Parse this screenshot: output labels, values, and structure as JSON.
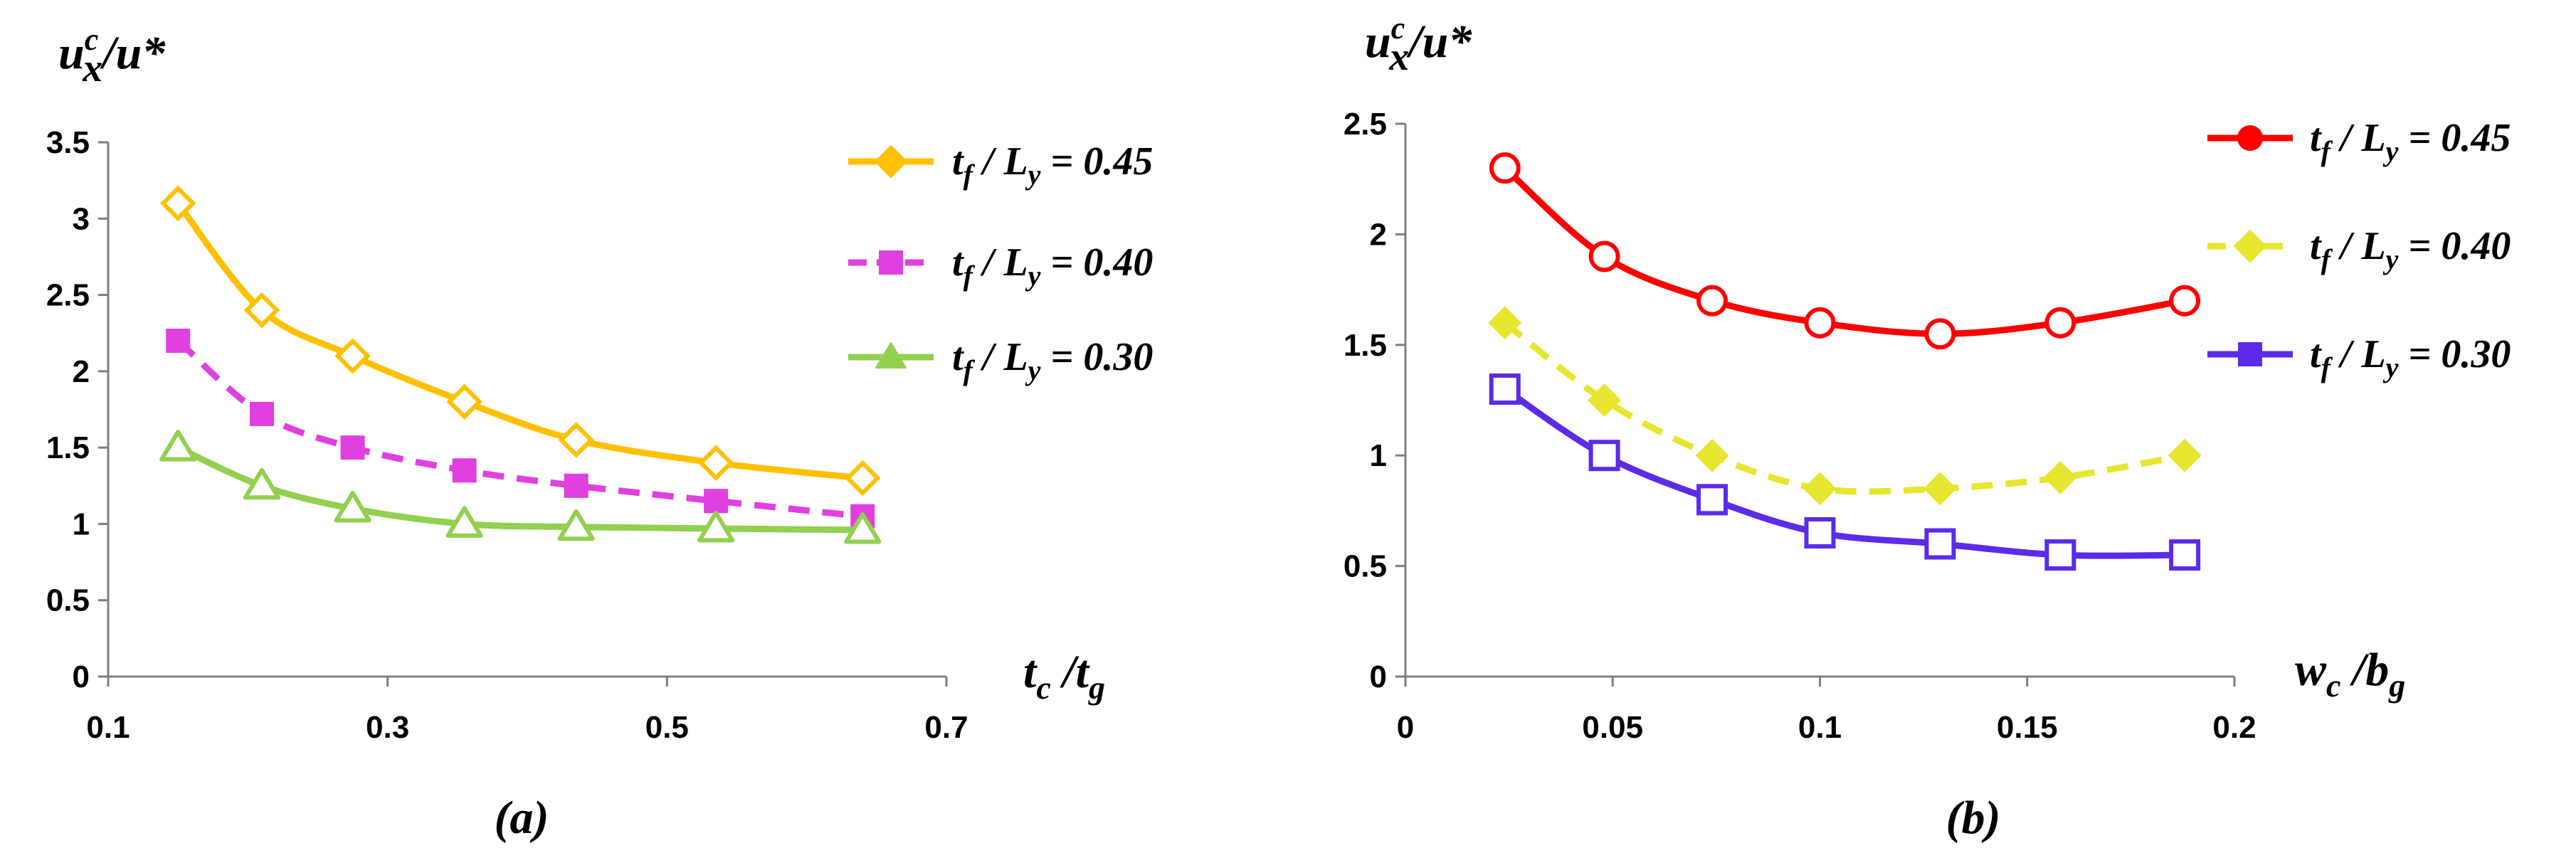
{
  "chart_data": [
    {
      "type": "line",
      "panel_label": "(a)",
      "ylabel": {
        "main": "u",
        "sup": "c",
        "sub": "x",
        "rest": "/u*"
      },
      "xlabel": {
        "t1": "t",
        "s1": "c",
        "mid": " /t",
        "s2": "g"
      },
      "xlim": [
        0.1,
        0.7
      ],
      "ylim": [
        0,
        3.5
      ],
      "xticks": [
        "0.1",
        "0.3",
        "0.5",
        "0.7"
      ],
      "yticks": [
        "0",
        "0.5",
        "1",
        "1.5",
        "2",
        "2.5",
        "3",
        "3.5"
      ],
      "series": [
        {
          "name": "0.45",
          "legend": {
            "t": "t",
            "ts": "f",
            "mid": " / L",
            "ls": "y",
            "val": " = 0.45"
          },
          "color": "#FFC000",
          "dash": false,
          "marker": "diamond-open",
          "legend_marker": "diamond-filled",
          "x": [
            0.15,
            0.21,
            0.275,
            0.355,
            0.435,
            0.535,
            0.64
          ],
          "y": [
            3.1,
            2.4,
            2.1,
            1.8,
            1.55,
            1.4,
            1.3
          ]
        },
        {
          "name": "0.40",
          "legend": {
            "t": "t",
            "ts": "f",
            "mid": " / L",
            "ls": "y",
            "val": " = 0.40"
          },
          "color": "#E040E0",
          "dash": true,
          "marker": "square-filled",
          "legend_marker": "square-filled",
          "x": [
            0.15,
            0.21,
            0.275,
            0.355,
            0.435,
            0.535,
            0.64
          ],
          "y": [
            2.2,
            1.72,
            1.5,
            1.35,
            1.25,
            1.15,
            1.05
          ]
        },
        {
          "name": "0.30",
          "legend": {
            "t": "t",
            "ts": "f",
            "mid": " / L",
            "ls": "y",
            "val": " = 0.30"
          },
          "color": "#92D050",
          "dash": false,
          "marker": "triangle-open",
          "legend_marker": "triangle-filled",
          "x": [
            0.15,
            0.21,
            0.275,
            0.355,
            0.435,
            0.535,
            0.64
          ],
          "y": [
            1.5,
            1.25,
            1.1,
            1.0,
            0.98,
            0.97,
            0.96
          ]
        }
      ]
    },
    {
      "type": "line",
      "panel_label": "(b)",
      "ylabel": {
        "main": "u",
        "sup": "c",
        "sub": "x",
        "rest": "/u*"
      },
      "xlabel": {
        "t1": "w",
        "s1": "c",
        "mid": " /b",
        "s2": "g"
      },
      "xlim": [
        0,
        0.2
      ],
      "ylim": [
        0,
        2.5
      ],
      "xticks": [
        "0",
        "0.05",
        "0.1",
        "0.15",
        "0.2"
      ],
      "yticks": [
        "0",
        "0.5",
        "1",
        "1.5",
        "2",
        "2.5"
      ],
      "series": [
        {
          "name": "0.45",
          "legend": {
            "t": "t",
            "ts": "f",
            "mid": " / L",
            "ls": "y",
            "val": " = 0.45"
          },
          "color": "#FF0000",
          "dash": false,
          "marker": "circle-open",
          "legend_marker": "circle-filled",
          "x": [
            0.024,
            0.048,
            0.074,
            0.1,
            0.129,
            0.158,
            0.188
          ],
          "y": [
            2.3,
            1.9,
            1.7,
            1.6,
            1.55,
            1.6,
            1.7
          ]
        },
        {
          "name": "0.40",
          "legend": {
            "t": "t",
            "ts": "f",
            "mid": " / L",
            "ls": "y",
            "val": " = 0.40"
          },
          "color": "#E6E62E",
          "dash": true,
          "marker": "diamond-filled",
          "legend_marker": "diamond-filled",
          "x": [
            0.024,
            0.048,
            0.074,
            0.1,
            0.129,
            0.158,
            0.188
          ],
          "y": [
            1.6,
            1.25,
            1.0,
            0.85,
            0.85,
            0.9,
            1.0
          ]
        },
        {
          "name": "0.30",
          "legend": {
            "t": "t",
            "ts": "f",
            "mid": " / L",
            "ls": "y",
            "val": " = 0.30"
          },
          "color": "#5B2BE8",
          "dash": false,
          "marker": "square-open",
          "legend_marker": "square-filled",
          "x": [
            0.024,
            0.048,
            0.074,
            0.1,
            0.129,
            0.158,
            0.188
          ],
          "y": [
            1.3,
            1.0,
            0.8,
            0.65,
            0.6,
            0.55,
            0.55
          ]
        }
      ]
    }
  ]
}
